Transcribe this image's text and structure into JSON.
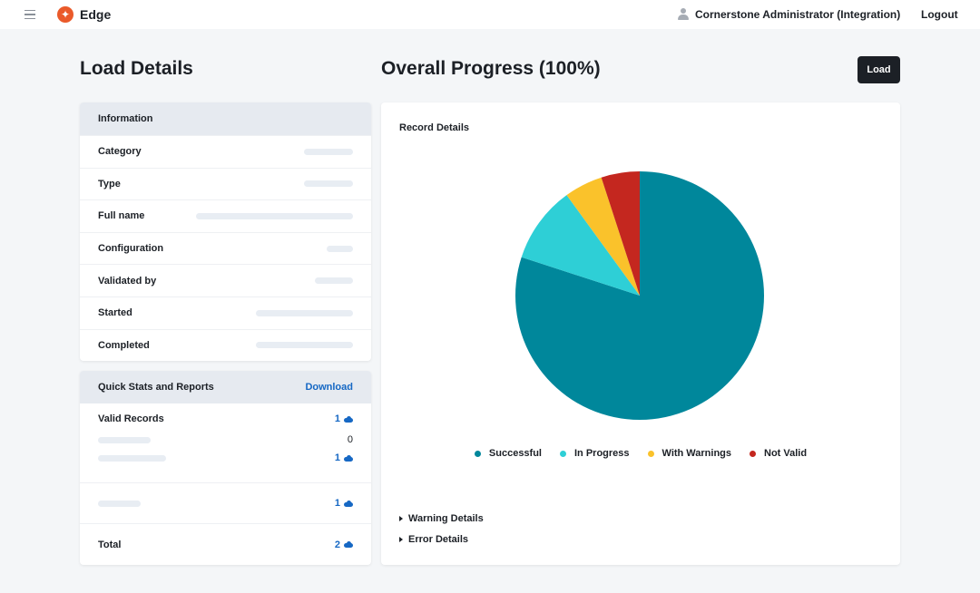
{
  "header": {
    "app_title": "Edge",
    "logo_icon": "edge-logo-icon",
    "menu_icon": "hamburger-menu-icon",
    "user_icon": "user-icon",
    "user_name": "Cornerstone Administrator (Integration)",
    "logout_label": "Logout"
  },
  "left_title": "Load Details",
  "right_title": "Overall Progress (100%)",
  "load_button": "Load",
  "information": {
    "header": "Information",
    "rows": [
      "Category",
      "Type",
      "Full name",
      "Configuration",
      "Validated by",
      "Started",
      "Completed"
    ]
  },
  "quick_stats": {
    "header": "Quick Stats and Reports",
    "download_label": "Download",
    "valid_records_label": "Valid Records",
    "valid_records_value": "1",
    "sub_values": [
      "0",
      "1"
    ],
    "other_value": "1",
    "total_label": "Total",
    "total_value": "2",
    "download_icon": "cloud-download-icon"
  },
  "chart": {
    "heading": "Record Details",
    "warning_details": "Warning Details",
    "error_details": "Error Details",
    "expand_icon": "caret-right-icon"
  },
  "chart_data": {
    "type": "pie",
    "categories": [
      "Successful",
      "In Progress",
      "With Warnings",
      "Not Valid"
    ],
    "values": [
      80,
      10,
      5,
      5
    ],
    "colors": [
      "#00879b",
      "#2ecfd6",
      "#fac22b",
      "#c4271f"
    ],
    "legend_position": "bottom"
  }
}
